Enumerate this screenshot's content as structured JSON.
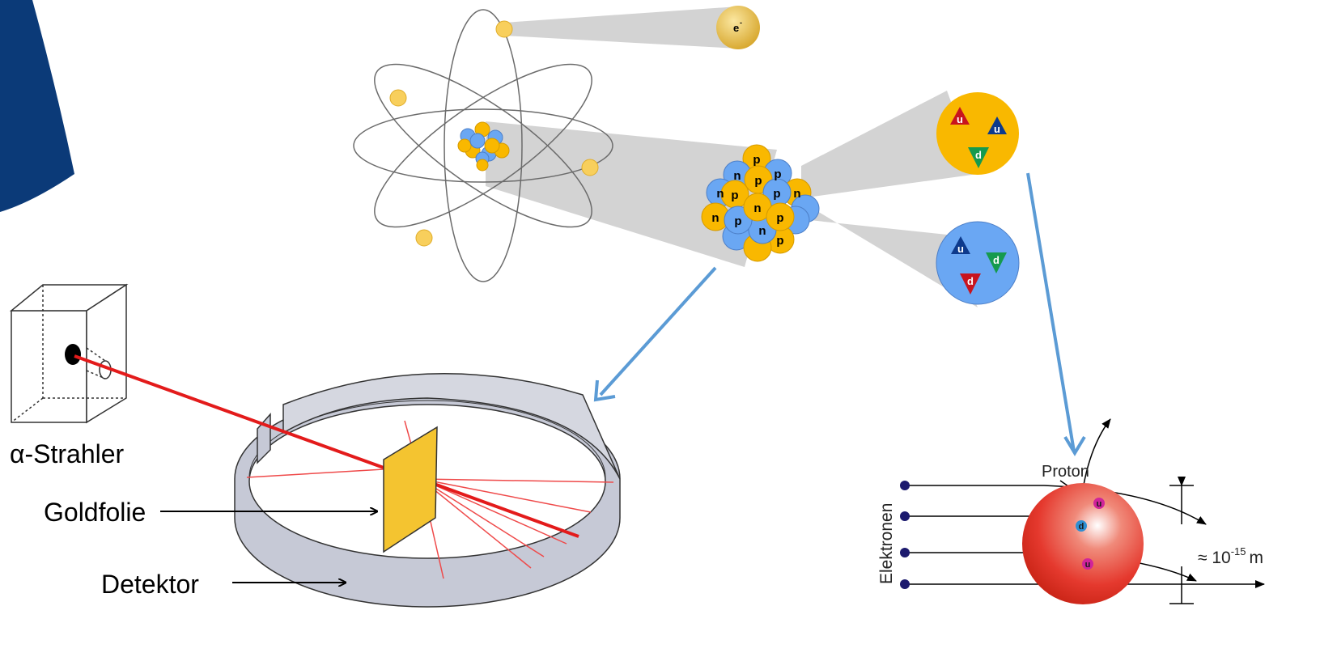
{
  "colors": {
    "corner_band": "#0b3a78",
    "electron": "#f8cf5c",
    "proton": "#f9b800",
    "neutron": "#6aa7f3",
    "arrow": "#5b9bd5",
    "alpha_beam": "#e31b1b",
    "gold_foil": "#f4c430",
    "detector": "#c6c9d6",
    "cone": "#d3d3d3",
    "quark_up_red": "#c8141e",
    "quark_up_blue": "#0d3a8c",
    "quark_down_green": "#159a4e",
    "quark_proton_sphere": "#e5392e"
  },
  "atom": {
    "electron_label": "e",
    "electron_charge": "-"
  },
  "nucleus": {
    "nucleon_labels": [
      "p",
      "n",
      "p",
      "n",
      "p",
      "n",
      "p",
      "p",
      "n",
      "p",
      "n",
      "p",
      "n",
      "p"
    ]
  },
  "nucleons": {
    "proton_quarks": [
      "u",
      "u",
      "d"
    ],
    "neutron_quarks": [
      "u",
      "d",
      "d"
    ]
  },
  "rutherford": {
    "source_label": "α-Strahler",
    "foil_label": "Goldfolie",
    "detector_label": "Detektor"
  },
  "scattering": {
    "proton_label": "Proton",
    "electrons_label": "Elektronen",
    "size_prefix": "≈ 10",
    "size_exponent": "-15",
    "size_unit": "m",
    "quarks": [
      "u",
      "d",
      "u"
    ]
  }
}
